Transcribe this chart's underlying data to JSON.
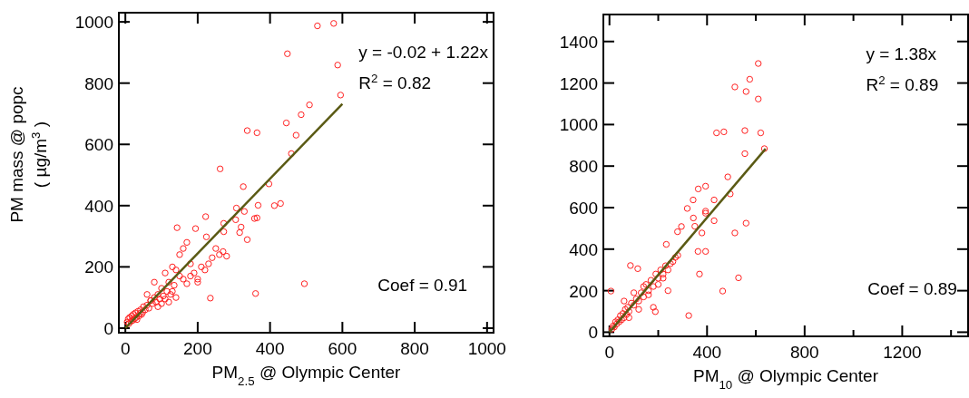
{
  "chart_data": [
    {
      "type": "scatter",
      "xlabel": "PM$_{2.5}$ @ Olympic Center",
      "ylabel": "PM mass @ popc\n( µg/m$^{3}$ )",
      "xlim": [
        -18,
        1018
      ],
      "ylim": [
        -15,
        1030
      ],
      "xticks": [
        0,
        200,
        400,
        600,
        800,
        1000
      ],
      "yticks": [
        0,
        200,
        400,
        600,
        800,
        1000
      ],
      "grid": false,
      "annotations": [
        "y = -0.02 + 1.22x",
        "R$^{2}$ = 0.82",
        "Coef = 0.91"
      ],
      "series": [
        {
          "marker": "circle",
          "color": "#ff2020",
          "x": [
            531,
            576,
            448,
            587,
            595,
            509,
            486,
            445,
            472,
            459,
            337,
            364,
            262,
            326,
            397,
            412,
            429,
            367,
            307,
            329,
            364,
            357,
            337,
            316,
            320,
            305,
            272,
            272,
            222,
            194,
            143,
            495,
            360,
            235,
            224,
            5,
            8,
            10,
            12,
            15,
            18,
            20,
            22,
            25,
            28,
            30,
            32,
            35,
            38,
            40,
            42,
            45,
            48,
            50,
            55,
            60,
            65,
            70,
            75,
            80,
            85,
            90,
            95,
            100,
            105,
            110,
            115,
            120,
            125,
            130,
            135,
            140,
            150,
            160,
            170,
            180,
            190,
            200,
            210,
            220,
            230,
            240,
            250,
            260,
            270,
            280,
            100,
            110,
            120,
            130,
            140,
            60,
            70,
            80,
            90,
            150,
            160,
            170,
            180,
            200
          ],
          "values": [
            987,
            995,
            896,
            859,
            761,
            729,
            697,
            670,
            630,
            570,
            645,
            638,
            520,
            462,
            471,
            400,
            407,
            401,
            392,
            381,
            360,
            358,
            289,
            312,
            330,
            354,
            342,
            315,
            364,
            325,
            328,
            145,
            113,
            98,
            298,
            20,
            30,
            15,
            35,
            22,
            40,
            25,
            45,
            30,
            50,
            35,
            28,
            55,
            40,
            48,
            60,
            45,
            52,
            70,
            60,
            75,
            65,
            90,
            80,
            100,
            85,
            110,
            95,
            130,
            105,
            180,
            120,
            150,
            110,
            200,
            140,
            190,
            170,
            160,
            145,
            170,
            180,
            150,
            200,
            190,
            210,
            230,
            260,
            240,
            250,
            235,
            80,
            95,
            85,
            120,
            100,
            110,
            90,
            150,
            70,
            240,
            260,
            280,
            210,
            160
          ]
        },
        {
          "type": "line",
          "color": "#5a5a14",
          "x": [
            0,
            600
          ],
          "values": [
            0,
            732
          ]
        }
      ]
    },
    {
      "type": "scatter",
      "xlabel": "PM$_{10}$ @ Olympic Center",
      "xlim": [
        -25,
        1470
      ],
      "ylim": [
        -20,
        1530
      ],
      "xticks": [
        0,
        {
          "value": 200,
          "label": null
        },
        400,
        {
          "value": 600,
          "label": null
        },
        800,
        {
          "value": 1000,
          "label": null
        },
        1200,
        {
          "value": 1400,
          "label": null
        }
      ],
      "yticks": [
        0,
        200,
        400,
        600,
        800,
        1000,
        1200,
        1400
      ],
      "grid": false,
      "annotations": [
        "y = 1.38x",
        "R$^{2}$ = 0.89",
        "Coef = 0.89"
      ],
      "series": [
        {
          "marker": "circle",
          "color": "#ff2020",
          "x": [
            610,
            575,
            514,
            560,
            610,
            439,
            469,
            555,
            620,
            555,
            635,
            485,
            495,
            394,
            364,
            343,
            429,
            319,
            394,
            394,
            344,
            429,
            350,
            295,
            279,
            379,
            514,
            560,
            363,
            394,
            369,
            529,
            464,
            325,
            188,
            6,
            86,
            116,
            233,
            10,
            15,
            20,
            25,
            30,
            35,
            40,
            45,
            50,
            55,
            60,
            65,
            70,
            75,
            80,
            90,
            100,
            110,
            120,
            130,
            140,
            150,
            160,
            170,
            180,
            190,
            200,
            210,
            220,
            230,
            240,
            250,
            260,
            270,
            280,
            60,
            80,
            100,
            120,
            140,
            160,
            180,
            200,
            220,
            240
          ],
          "values": [
            1294,
            1218,
            1181,
            1159,
            1123,
            960,
            965,
            971,
            960,
            860,
            884,
            748,
            666,
            703,
            690,
            637,
            637,
            596,
            583,
            573,
            550,
            537,
            510,
            509,
            484,
            478,
            478,
            525,
            389,
            389,
            280,
            262,
            198,
            80,
            99,
            198,
            321,
            306,
            423,
            15,
            30,
            25,
            50,
            40,
            60,
            50,
            80,
            60,
            90,
            70,
            110,
            85,
            120,
            100,
            140,
            130,
            160,
            150,
            190,
            170,
            230,
            200,
            250,
            220,
            280,
            260,
            300,
            280,
            320,
            300,
            330,
            340,
            360,
            370,
            150,
            70,
            190,
            110,
            220,
            180,
            120,
            230,
            260,
            200
          ]
        },
        {
          "type": "line",
          "color": "#5a5a14",
          "x": [
            0,
            640
          ],
          "values": [
            0,
            883
          ]
        }
      ]
    }
  ]
}
